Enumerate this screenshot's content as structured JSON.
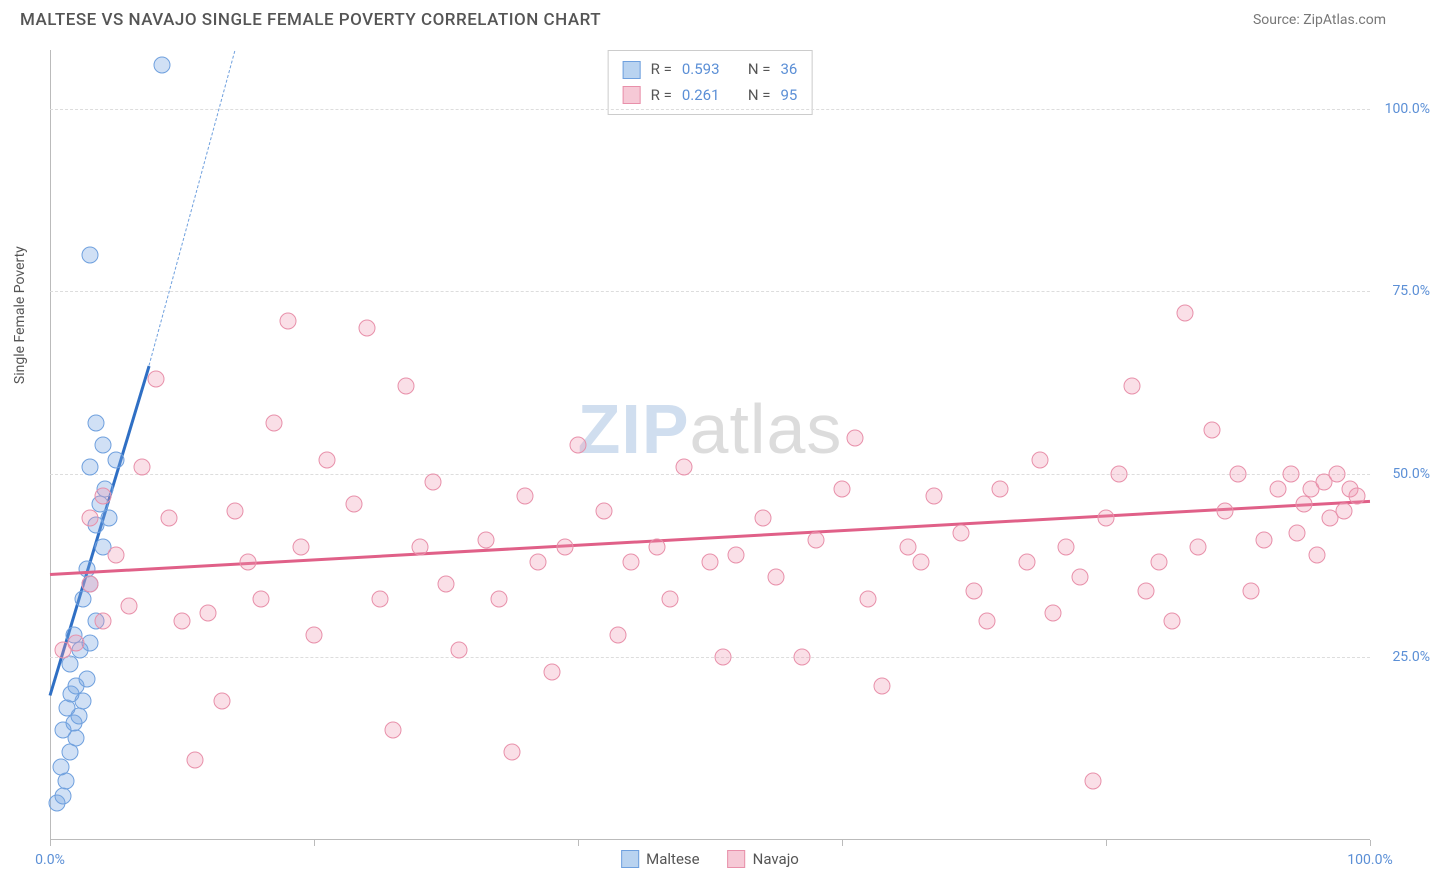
{
  "header": {
    "title": "MALTESE VS NAVAJO SINGLE FEMALE POVERTY CORRELATION CHART",
    "source": "Source: ZipAtlas.com"
  },
  "chart": {
    "type": "scatter",
    "y_axis_label": "Single Female Poverty",
    "background_color": "#ffffff",
    "grid_color": "#dddddd",
    "xlim": [
      0,
      100
    ],
    "ylim": [
      0,
      108
    ],
    "x_ticks": [
      0,
      20,
      40,
      60,
      80,
      100
    ],
    "x_tick_labels": {
      "0": "0.0%",
      "100": "100.0%"
    },
    "y_ticks": [
      25,
      50,
      75,
      100
    ],
    "y_tick_labels": {
      "25": "25.0%",
      "50": "50.0%",
      "75": "75.0%",
      "100": "100.0%"
    },
    "watermark": {
      "part1": "ZIP",
      "part2": "atlas"
    },
    "series": [
      {
        "name": "Maltese",
        "fill_color": "rgba(120,165,225,0.35)",
        "stroke_color": "#6fa0de",
        "swatch_fill": "#b9d3f0",
        "swatch_border": "#6fa0de",
        "trend_color": "#2f6fc4",
        "trend_dashed_color": "#6fa0de",
        "R": "0.593",
        "N": "36",
        "trend": {
          "x1": 0,
          "y1": 20,
          "x2": 7.5,
          "y2": 65
        },
        "trend_dashed": {
          "x1": 7.5,
          "y1": 65,
          "x2": 14,
          "y2": 108
        },
        "points": [
          [
            0.5,
            5
          ],
          [
            1,
            6
          ],
          [
            1.2,
            8
          ],
          [
            0.8,
            10
          ],
          [
            1.5,
            12
          ],
          [
            2,
            14
          ],
          [
            1,
            15
          ],
          [
            1.8,
            16
          ],
          [
            2.2,
            17
          ],
          [
            1.3,
            18
          ],
          [
            2.5,
            19
          ],
          [
            1.6,
            20
          ],
          [
            2,
            21
          ],
          [
            2.8,
            22
          ],
          [
            1.5,
            24
          ],
          [
            2.3,
            26
          ],
          [
            3,
            27
          ],
          [
            1.8,
            28
          ],
          [
            3.5,
            30
          ],
          [
            2.5,
            33
          ],
          [
            3,
            35
          ],
          [
            2.8,
            37
          ],
          [
            4,
            40
          ],
          [
            3.5,
            43
          ],
          [
            4.5,
            44
          ],
          [
            3.8,
            46
          ],
          [
            4.2,
            48
          ],
          [
            3,
            51
          ],
          [
            5,
            52
          ],
          [
            4,
            54
          ],
          [
            3.5,
            57
          ],
          [
            3,
            80
          ],
          [
            8.5,
            106
          ]
        ]
      },
      {
        "name": "Navajo",
        "fill_color": "rgba(240,150,175,0.30)",
        "stroke_color": "#e890aa",
        "swatch_fill": "#f6c9d6",
        "swatch_border": "#e890aa",
        "trend_color": "#e06088",
        "R": "0.261",
        "N": "95",
        "trend": {
          "x1": 0,
          "y1": 36.5,
          "x2": 100,
          "y2": 46.5
        },
        "points": [
          [
            1,
            26
          ],
          [
            2,
            27
          ],
          [
            3,
            35
          ],
          [
            4,
            30
          ],
          [
            3,
            44
          ],
          [
            4,
            47
          ],
          [
            5,
            39
          ],
          [
            6,
            32
          ],
          [
            7,
            51
          ],
          [
            8,
            63
          ],
          [
            9,
            44
          ],
          [
            10,
            30
          ],
          [
            11,
            11
          ],
          [
            12,
            31
          ],
          [
            13,
            19
          ],
          [
            14,
            45
          ],
          [
            15,
            38
          ],
          [
            16,
            33
          ],
          [
            17,
            57
          ],
          [
            18,
            71
          ],
          [
            19,
            40
          ],
          [
            20,
            28
          ],
          [
            21,
            52
          ],
          [
            23,
            46
          ],
          [
            24,
            70
          ],
          [
            25,
            33
          ],
          [
            26,
            15
          ],
          [
            27,
            62
          ],
          [
            28,
            40
          ],
          [
            29,
            49
          ],
          [
            30,
            35
          ],
          [
            31,
            26
          ],
          [
            33,
            41
          ],
          [
            34,
            33
          ],
          [
            35,
            12
          ],
          [
            36,
            47
          ],
          [
            37,
            38
          ],
          [
            38,
            23
          ],
          [
            39,
            40
          ],
          [
            40,
            54
          ],
          [
            42,
            45
          ],
          [
            43,
            28
          ],
          [
            44,
            38
          ],
          [
            46,
            40
          ],
          [
            47,
            33
          ],
          [
            48,
            51
          ],
          [
            50,
            38
          ],
          [
            51,
            25
          ],
          [
            52,
            39
          ],
          [
            54,
            44
          ],
          [
            55,
            36
          ],
          [
            57,
            25
          ],
          [
            58,
            41
          ],
          [
            60,
            48
          ],
          [
            61,
            55
          ],
          [
            62,
            33
          ],
          [
            63,
            21
          ],
          [
            65,
            40
          ],
          [
            66,
            38
          ],
          [
            67,
            47
          ],
          [
            69,
            42
          ],
          [
            70,
            34
          ],
          [
            71,
            30
          ],
          [
            72,
            48
          ],
          [
            74,
            38
          ],
          [
            75,
            52
          ],
          [
            76,
            31
          ],
          [
            77,
            40
          ],
          [
            78,
            36
          ],
          [
            79,
            8
          ],
          [
            80,
            44
          ],
          [
            81,
            50
          ],
          [
            82,
            62
          ],
          [
            83,
            34
          ],
          [
            84,
            38
          ],
          [
            85,
            30
          ],
          [
            86,
            72
          ],
          [
            87,
            40
          ],
          [
            88,
            56
          ],
          [
            89,
            45
          ],
          [
            90,
            50
          ],
          [
            91,
            34
          ],
          [
            92,
            41
          ],
          [
            93,
            48
          ],
          [
            94,
            50
          ],
          [
            94.5,
            42
          ],
          [
            95,
            46
          ],
          [
            95.5,
            48
          ],
          [
            96,
            39
          ],
          [
            96.5,
            49
          ],
          [
            97,
            44
          ],
          [
            97.5,
            50
          ],
          [
            98,
            45
          ],
          [
            98.5,
            48
          ],
          [
            99,
            47
          ]
        ]
      }
    ],
    "bottom_legend": [
      {
        "label": "Maltese",
        "fill": "#b9d3f0",
        "border": "#6fa0de"
      },
      {
        "label": "Navajo",
        "fill": "#f6c9d6",
        "border": "#e890aa"
      }
    ]
  }
}
